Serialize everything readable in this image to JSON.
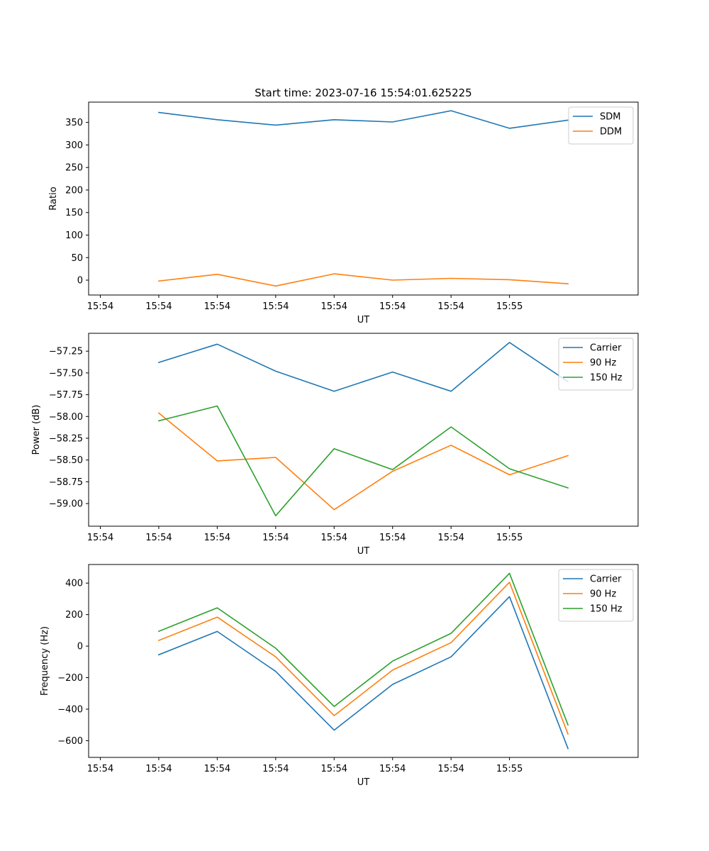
{
  "title": "Start time: 2023-07-16 15:54:01.625225",
  "colors": {
    "blue": "#1f77b4",
    "orange": "#ff7f0e",
    "green": "#2ca02c"
  },
  "chart_data": [
    {
      "type": "line",
      "title": "Start time: 2023-07-16 15:54:01.625225",
      "xlabel": "UT",
      "ylabel": "Ratio",
      "x_tick_labels": [
        "15:54",
        "15:54",
        "15:54",
        "15:54",
        "15:54",
        "15:54",
        "15:54",
        "15:55"
      ],
      "x": [
        1,
        2,
        3,
        4,
        5,
        6,
        7,
        8
      ],
      "xlim": [
        -0.2,
        9.2
      ],
      "ylim": [
        -33,
        395
      ],
      "yticks": [
        0,
        50,
        100,
        150,
        200,
        250,
        300,
        350
      ],
      "ytick_labels": [
        "0",
        "50",
        "100",
        "150",
        "200",
        "250",
        "300",
        "350"
      ],
      "legend": "upper right",
      "series": [
        {
          "name": "SDM",
          "color": "#1f77b4",
          "values": [
            372,
            356,
            344,
            356,
            351,
            376,
            337,
            355
          ]
        },
        {
          "name": "DDM",
          "color": "#ff7f0e",
          "values": [
            -2,
            13,
            -13,
            14,
            0,
            4,
            1,
            -8
          ]
        }
      ]
    },
    {
      "type": "line",
      "xlabel": "UT",
      "ylabel": "Power (dB)",
      "x_tick_labels": [
        "15:54",
        "15:54",
        "15:54",
        "15:54",
        "15:54",
        "15:54",
        "15:54",
        "15:55"
      ],
      "x": [
        1,
        2,
        3,
        4,
        5,
        6,
        7,
        8
      ],
      "xlim": [
        -0.2,
        9.2
      ],
      "ylim": [
        -59.26,
        -57.045
      ],
      "yticks": [
        -59.0,
        -58.75,
        -58.5,
        -58.25,
        -58.0,
        -57.75,
        -57.5,
        -57.25
      ],
      "ytick_labels": [
        "−59.00",
        "−58.75",
        "−58.50",
        "−58.25",
        "−58.00",
        "−57.75",
        "−57.50",
        "−57.25"
      ],
      "legend": "upper right",
      "series": [
        {
          "name": "Carrier",
          "color": "#1f77b4",
          "values": [
            -57.38,
            -57.17,
            -57.48,
            -57.71,
            -57.49,
            -57.71,
            -57.15,
            -57.6
          ]
        },
        {
          "name": "90 Hz",
          "color": "#ff7f0e",
          "values": [
            -57.96,
            -58.51,
            -58.47,
            -59.07,
            -58.63,
            -58.33,
            -58.67,
            -58.45
          ]
        },
        {
          "name": "150 Hz",
          "color": "#2ca02c",
          "values": [
            -58.05,
            -57.88,
            -59.14,
            -58.37,
            -58.61,
            -58.12,
            -58.6,
            -58.82
          ]
        }
      ]
    },
    {
      "type": "line",
      "xlabel": "UT",
      "ylabel": "Frequency (Hz)",
      "x_tick_labels": [
        "15:54",
        "15:54",
        "15:54",
        "15:54",
        "15:54",
        "15:54",
        "15:54",
        "15:55"
      ],
      "x": [
        1,
        2,
        3,
        4,
        5,
        6,
        7,
        8
      ],
      "xlim": [
        -0.2,
        9.2
      ],
      "ylim": [
        -706,
        518
      ],
      "yticks": [
        -600,
        -400,
        -200,
        0,
        200,
        400
      ],
      "ytick_labels": [
        "−600",
        "−400",
        "−200",
        "0",
        "200",
        "400"
      ],
      "legend": "upper right",
      "series": [
        {
          "name": "Carrier",
          "color": "#1f77b4",
          "values": [
            -55,
            93,
            -160,
            -533,
            -243,
            -68,
            314,
            -650
          ]
        },
        {
          "name": "90 Hz",
          "color": "#ff7f0e",
          "values": [
            36,
            184,
            -68,
            -441,
            -152,
            22,
            405,
            -558
          ]
        },
        {
          "name": "150 Hz",
          "color": "#2ca02c",
          "values": [
            94,
            243,
            -13,
            -383,
            -95,
            81,
            462,
            -500
          ]
        }
      ]
    }
  ]
}
